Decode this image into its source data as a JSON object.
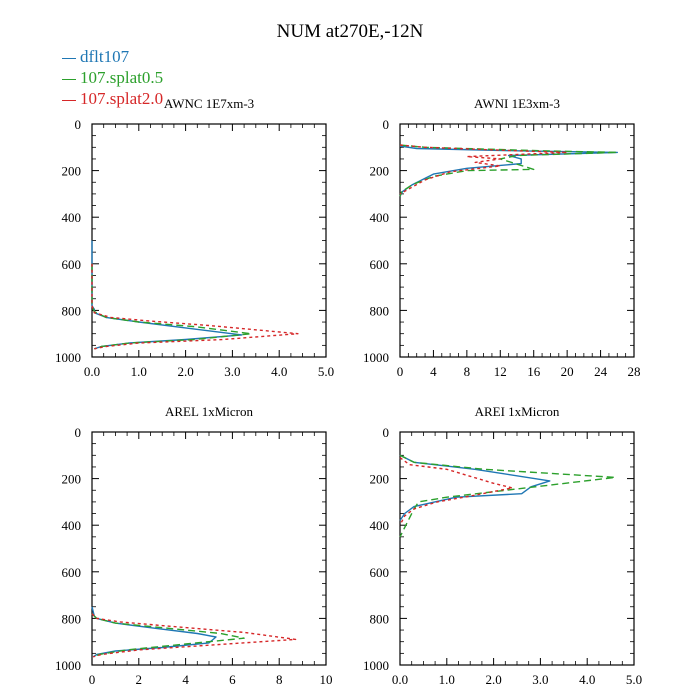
{
  "figure": {
    "title": "NUM at270E,-12N",
    "legend": [
      {
        "label": "dflt107",
        "color": "#1f77b4"
      },
      {
        "label": "107.splat0.5",
        "color": "#2ca02c"
      },
      {
        "label": "107.splat2.0",
        "color": "#d62728"
      }
    ]
  },
  "chart_data": [
    {
      "type": "line",
      "title": "AWNC  1E7xm-3",
      "xlim": [
        0,
        5
      ],
      "ylim": [
        1000,
        0
      ],
      "xticks": [
        0,
        1,
        2,
        3,
        4,
        5
      ],
      "xtick_labels": [
        "0.0",
        "1.0",
        "2.0",
        "3.0",
        "4.0",
        "5.0"
      ],
      "yticks": [
        0,
        200,
        400,
        600,
        800,
        1000
      ],
      "ytick_labels": [
        "0",
        "200",
        "400",
        "600",
        "800",
        "1000"
      ],
      "series": [
        {
          "name": "dflt107",
          "x": [
            0,
            0,
            0,
            0.05,
            0.05,
            0.3,
            1.0,
            2.0,
            3.2,
            2.0,
            0.8,
            0.2,
            0.05
          ],
          "y": [
            500,
            600,
            780,
            795,
            810,
            830,
            850,
            875,
            905,
            925,
            940,
            955,
            965
          ]
        },
        {
          "name": "107.splat0.5",
          "x": [
            0,
            0,
            0.05,
            0.3,
            1.0,
            2.2,
            3.4,
            2.2,
            0.8,
            0.2,
            0.05
          ],
          "y": [
            600,
            780,
            805,
            830,
            850,
            870,
            900,
            925,
            940,
            955,
            965
          ]
        },
        {
          "name": "107.splat2.0",
          "x": [
            0,
            0,
            0.05,
            0.4,
            1.2,
            2.5,
            4.4,
            2.8,
            1.0,
            0.3,
            0.05
          ],
          "y": [
            600,
            780,
            810,
            830,
            845,
            865,
            900,
            925,
            940,
            955,
            965
          ]
        }
      ]
    },
    {
      "type": "line",
      "title": "AWNI  1E3xm-3",
      "xlim": [
        0,
        28
      ],
      "ylim": [
        1000,
        0
      ],
      "xticks": [
        0,
        4,
        8,
        12,
        16,
        20,
        24,
        28
      ],
      "xtick_labels": [
        "0",
        "4",
        "8",
        "12",
        "16",
        "20",
        "24",
        "28"
      ],
      "yticks": [
        0,
        200,
        400,
        600,
        800,
        1000
      ],
      "ytick_labels": [
        "0",
        "200",
        "400",
        "600",
        "800",
        "1000"
      ],
      "series": [
        {
          "name": "dflt107",
          "x": [
            0,
            2,
            14,
            26,
            13,
            14.5,
            14.5,
            8,
            4,
            1.5,
            0.3,
            0
          ],
          "y": [
            95,
            105,
            115,
            122,
            135,
            150,
            170,
            190,
            215,
            260,
            290,
            310
          ]
        },
        {
          "name": "107.splat0.5",
          "x": [
            0,
            3,
            17,
            26,
            14,
            12,
            16,
            8,
            4,
            1.5,
            0.2,
            0
          ],
          "y": [
            90,
            100,
            115,
            122,
            135,
            150,
            195,
            200,
            225,
            260,
            290,
            310
          ]
        },
        {
          "name": "107.splat2.0",
          "x": [
            0,
            3,
            14,
            20,
            8,
            12,
            9,
            12,
            6,
            3,
            1,
            0
          ],
          "y": [
            90,
            100,
            115,
            122,
            140,
            150,
            165,
            180,
            205,
            240,
            280,
            300
          ]
        }
      ]
    },
    {
      "type": "line",
      "title": "AREL  1xMicron",
      "xlim": [
        0,
        10
      ],
      "ylim": [
        1000,
        0
      ],
      "xticks": [
        0,
        2,
        4,
        6,
        8,
        10
      ],
      "xtick_labels": [
        "0",
        "2",
        "4",
        "6",
        "8",
        "10"
      ],
      "yticks": [
        0,
        200,
        400,
        600,
        800,
        1000
      ],
      "ytick_labels": [
        "0",
        "200",
        "400",
        "600",
        "800",
        "1000"
      ],
      "series": [
        {
          "name": "dflt107",
          "x": [
            0,
            0.1,
            0.2,
            1.0,
            2.5,
            4.5,
            5.3,
            5.0,
            3.0,
            1.0,
            0.2,
            0.05
          ],
          "y": [
            750,
            790,
            800,
            820,
            840,
            865,
            880,
            905,
            925,
            940,
            955,
            965
          ]
        },
        {
          "name": "107.splat0.5",
          "x": [
            0,
            0.2,
            1.0,
            3.0,
            5.5,
            6.5,
            4.0,
            1.5,
            0.3,
            0.05
          ],
          "y": [
            780,
            800,
            820,
            840,
            865,
            885,
            910,
            935,
            955,
            965
          ]
        },
        {
          "name": "107.splat2.0",
          "x": [
            0,
            0.2,
            1.2,
            3.5,
            6.5,
            8.7,
            5.0,
            2.0,
            0.4,
            0.05
          ],
          "y": [
            780,
            800,
            815,
            835,
            860,
            890,
            915,
            935,
            955,
            965
          ]
        }
      ]
    },
    {
      "type": "line",
      "title": "AREI  1xMicron",
      "xlim": [
        0,
        5
      ],
      "ylim": [
        1000,
        0
      ],
      "xticks": [
        0,
        1,
        2,
        3,
        4,
        5
      ],
      "xtick_labels": [
        "0.0",
        "1.0",
        "2.0",
        "3.0",
        "4.0",
        "5.0"
      ],
      "yticks": [
        0,
        200,
        400,
        600,
        800,
        1000
      ],
      "ytick_labels": [
        "0",
        "200",
        "400",
        "600",
        "800",
        "1000"
      ],
      "series": [
        {
          "name": "dflt107",
          "x": [
            0,
            0.3,
            1.6,
            3.2,
            2.8,
            2.6,
            1.2,
            0.3,
            0.1,
            0
          ],
          "y": [
            100,
            130,
            160,
            210,
            235,
            265,
            280,
            320,
            350,
            380
          ]
        },
        {
          "name": "107.splat0.5",
          "x": [
            0,
            0.3,
            1.8,
            4.6,
            1.0,
            0.4,
            0.3,
            0.2,
            0.1,
            0
          ],
          "y": [
            100,
            130,
            160,
            195,
            280,
            300,
            330,
            370,
            410,
            450
          ]
        },
        {
          "name": "107.splat2.0",
          "x": [
            0,
            0.2,
            1.0,
            1.5,
            2.0,
            2.4,
            1.5,
            0.8,
            0.3,
            0.1,
            0
          ],
          "y": [
            110,
            140,
            160,
            190,
            220,
            240,
            275,
            300,
            330,
            360,
            400
          ]
        }
      ]
    }
  ]
}
